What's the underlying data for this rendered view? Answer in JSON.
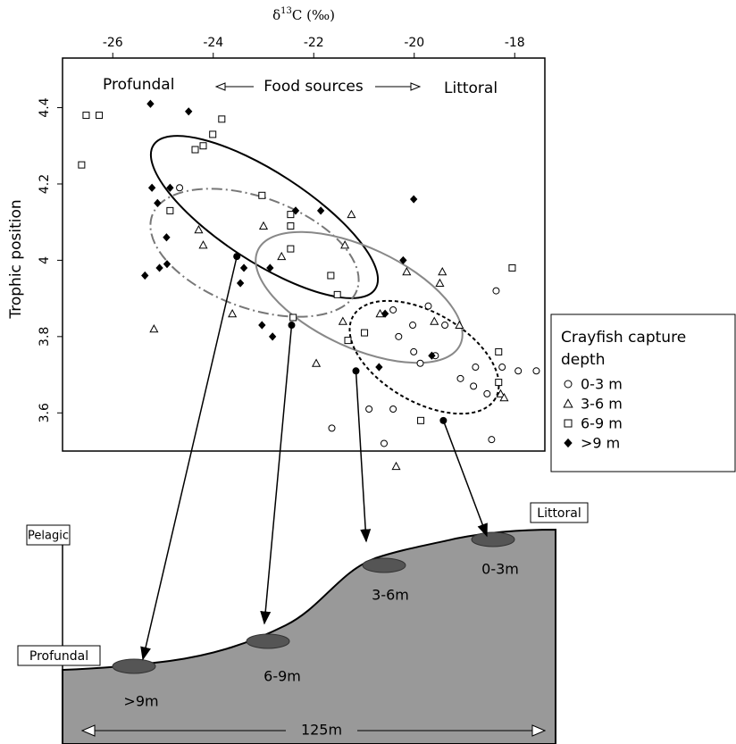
{
  "chart_data": {
    "type": "scatter",
    "xlabel": {
      "symbol": "δ",
      "superscript": "13",
      "rest": "C (‰)"
    },
    "ylabel": "Trophic position",
    "annotations": {
      "left": "Profundal",
      "middle": "Food sources",
      "right": "Littoral"
    },
    "xlim": [
      -27,
      -17.4
    ],
    "ylim": [
      3.5,
      4.53
    ],
    "xticks": [
      -26,
      -24,
      -22,
      -20,
      -18
    ],
    "yticks": [
      3.6,
      3.8,
      4.0,
      4.2,
      4.4
    ],
    "legend_title": "Crayfish capture depth",
    "legend_position": "right",
    "series": [
      {
        "name": "0-3 m",
        "marker": "circle",
        "color": "#000000",
        "x": [
          -24.67,
          -20.42,
          -19.72,
          -20.03,
          -20.31,
          -20.01,
          -19.88,
          -19.58,
          -19.39,
          -18.37,
          -20.9,
          -19.08,
          -18.78,
          -18.25,
          -17.93,
          -17.57,
          -18.82,
          -20.42,
          -20.6,
          -18.46,
          -21.64,
          -18.55
        ],
        "y": [
          4.19,
          3.87,
          3.88,
          3.83,
          3.8,
          3.76,
          3.73,
          3.75,
          3.83,
          3.92,
          3.61,
          3.69,
          3.72,
          3.72,
          3.71,
          3.71,
          3.67,
          3.61,
          3.52,
          3.53,
          3.56,
          3.65
        ]
      },
      {
        "name": "3-6 m",
        "marker": "triangle",
        "color": "#000000",
        "x": [
          -25.18,
          -24.29,
          -24.2,
          -23.62,
          -23.0,
          -22.64,
          -21.95,
          -21.25,
          -21.38,
          -21.42,
          -20.68,
          -20.15,
          -19.44,
          -19.49,
          -19.6,
          -19.1,
          -20.36,
          -18.28,
          -18.21
        ],
        "y": [
          3.82,
          4.08,
          4.04,
          3.86,
          4.09,
          4.01,
          3.73,
          4.12,
          4.04,
          3.84,
          3.86,
          3.97,
          3.97,
          3.94,
          3.84,
          3.83,
          3.46,
          3.65,
          3.64
        ]
      },
      {
        "name": "6-9 m",
        "marker": "square",
        "color": "#000000",
        "x": [
          -26.53,
          -26.27,
          -26.62,
          -23.83,
          -24.01,
          -24.2,
          -24.36,
          -24.86,
          -23.03,
          -22.46,
          -22.46,
          -22.46,
          -21.66,
          -21.53,
          -22.41,
          -21.32,
          -20.99,
          -19.87,
          -18.32,
          -18.32,
          -18.05
        ],
        "y": [
          4.38,
          4.38,
          4.25,
          4.37,
          4.33,
          4.3,
          4.29,
          4.13,
          4.17,
          4.12,
          4.09,
          4.03,
          3.96,
          3.91,
          3.85,
          3.79,
          3.81,
          3.58,
          3.76,
          3.68,
          3.98
        ]
      },
      {
        "name": ">9 m",
        "marker": "diamond",
        "color": "#000000",
        "x": [
          -25.25,
          -24.49,
          -25.22,
          -24.86,
          -25.11,
          -24.93,
          -25.07,
          -24.92,
          -25.36,
          -23.39,
          -23.46,
          -22.87,
          -23.03,
          -22.82,
          -22.36,
          -21.86,
          -20.01,
          -20.22,
          -20.58,
          -20.7,
          -19.65
        ],
        "y": [
          4.41,
          4.39,
          4.19,
          4.19,
          4.15,
          4.06,
          3.98,
          3.99,
          3.96,
          3.98,
          3.94,
          3.98,
          3.83,
          3.8,
          4.13,
          4.13,
          4.16,
          4.0,
          3.86,
          3.72,
          3.75
        ]
      }
    ],
    "centroids": {
      "x": [
        -23.53,
        -22.44,
        -21.16,
        -19.42
      ],
      "y": [
        4.01,
        3.83,
        3.71,
        3.58
      ]
    }
  },
  "diagram": {
    "zones": {
      "pelagic": "Pelagic",
      "profundal": "Profundal",
      "littoral": "Littoral"
    },
    "depths": [
      ">9m",
      "6-9m",
      "3-6m",
      "0-3m"
    ],
    "width_label": "125m"
  }
}
